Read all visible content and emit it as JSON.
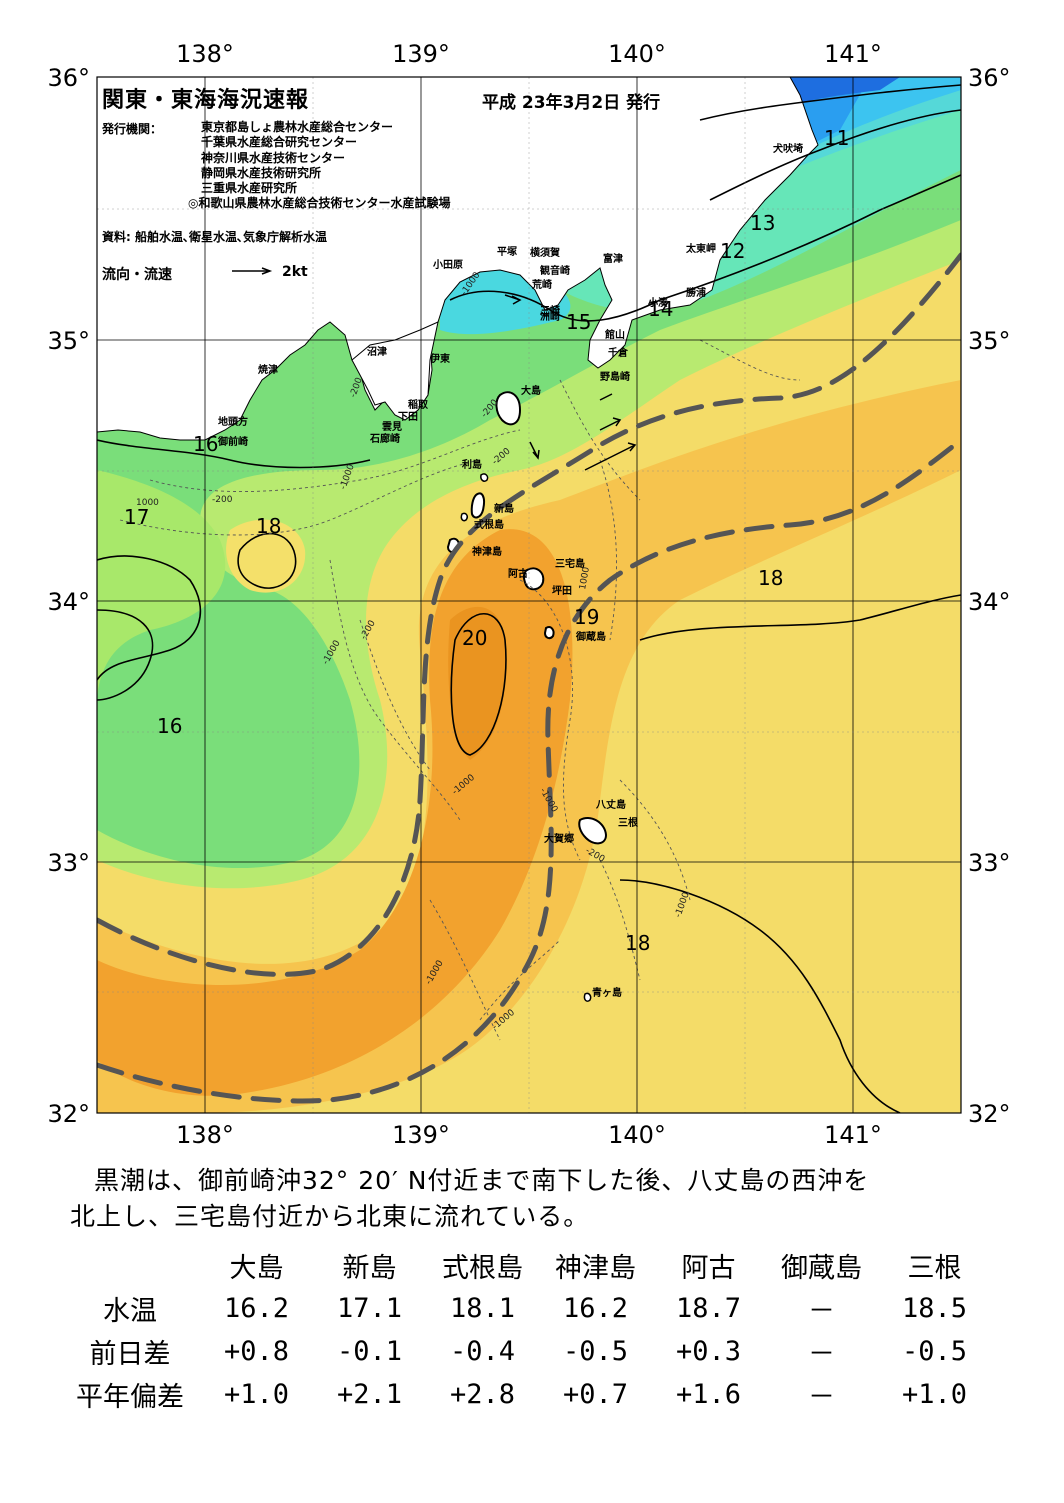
{
  "header": {
    "title": "関東・東海海況速報",
    "date": "平成 23年3月2日 発行",
    "issuer_label": "発行機関：",
    "issuers": [
      "東京都島しょ農林水産総合センター",
      "千葉県水産総合研究センター",
      "神奈川県水産技術センター",
      "静岡県水産技術研究所",
      "三重県水産研究所",
      "◎和歌山県農林水産総合技術センター水産試験場"
    ],
    "source": "資料: 船舶水温､衛星水温､気象庁解析水温",
    "flow_label": "流向・流速",
    "flow_scale": "2kt"
  },
  "map": {
    "lon_labels": [
      "138°",
      "139°",
      "140°",
      "141°"
    ],
    "lat_labels": [
      "36°",
      "35°",
      "34°",
      "33°",
      "32°"
    ],
    "colors": {
      "c11": "#1e7fe0",
      "c12": "#2aa3f0",
      "c13": "#3cc8f0",
      "c14": "#55e0d6",
      "c15": "#66e8ba",
      "c16": "#78e27c",
      "c17": "#b6ec6e",
      "c18": "#f4f07a",
      "c185": "#f6dd6a",
      "c19": "#f6c04c",
      "c20": "#f2a22e",
      "kuroshio": "#555555",
      "land": "#ffffff"
    },
    "isotherm_labels": [
      "11",
      "12",
      "13",
      "14",
      "15",
      "16",
      "16",
      "17",
      "18",
      "18",
      "18",
      "19",
      "20"
    ],
    "depth_labels": [
      "1000",
      "-200",
      "-1000",
      "-200",
      "-1000",
      "-200",
      "-1000",
      "-200",
      "-1000",
      "1000",
      "-1000",
      "-200",
      "-1000",
      "-1000",
      "-1000",
      "-200"
    ],
    "places": [
      "犬吠埼",
      "太東岬",
      "勝浦",
      "小湊",
      "館山",
      "千倉",
      "野島崎",
      "洲崎",
      "富津",
      "観音崎",
      "荒崎",
      "三崎",
      "横須賀",
      "平塚",
      "小田原",
      "沼津",
      "伊東",
      "稲取",
      "下田",
      "雲見",
      "石廊崎",
      "焼津",
      "地頭方",
      "御前崎",
      "大島",
      "利島",
      "新島",
      "式根島",
      "神津島",
      "三宅島",
      "阿古",
      "坪田",
      "御蔵島",
      "八丈島",
      "三根",
      "大賀郷",
      "青ヶ島"
    ]
  },
  "summary": [
    "黒潮は、御前崎沖32° 20′ N付近まで南下した後、八丈島の西沖を",
    "北上し、三宅島付近から北東に流れている。"
  ],
  "observations": {
    "stations": [
      "大島",
      "新島",
      "式根島",
      "神津島",
      "阿古",
      "御蔵島",
      "三根"
    ],
    "rows": [
      {
        "label": "水温",
        "values": [
          "16.2",
          "17.1",
          "18.1",
          "16.2",
          "18.7",
          "－",
          "18.5"
        ]
      },
      {
        "label": "前日差",
        "values": [
          "+0.8",
          "-0.1",
          "-0.4",
          "-0.5",
          "+0.3",
          "－",
          "-0.5"
        ]
      },
      {
        "label": "平年偏差",
        "values": [
          "+1.0",
          "+2.1",
          "+2.8",
          "+0.7",
          "+1.6",
          "－",
          "+1.0"
        ]
      }
    ]
  }
}
